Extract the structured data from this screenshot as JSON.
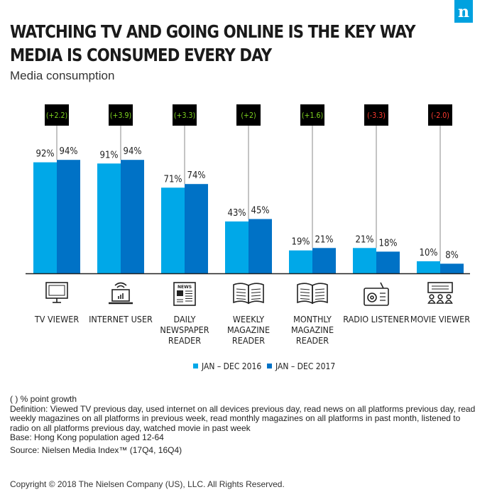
{
  "brand": {
    "logo_letter": "n",
    "color": "#00a1df"
  },
  "title_lines": [
    "WATCHING TV AND GOING ONLINE IS THE KEY WAY",
    "MEDIA IS CONSUMED EVERY DAY"
  ],
  "subtitle": "Media consumption",
  "chart_data": {
    "type": "bar",
    "title": "WATCHING TV AND GOING ONLINE IS THE KEY WAY MEDIA IS CONSUMED EVERY DAY",
    "subtitle": "Media consumption",
    "xlabel": "",
    "ylabel": "",
    "ylim": [
      0,
      100
    ],
    "grid": false,
    "legend_position": "bottom",
    "categories": [
      {
        "label": [
          "TV VIEWER"
        ],
        "icon": "tv-icon"
      },
      {
        "label": [
          "INTERNET USER"
        ],
        "icon": "laptop-wifi-icon"
      },
      {
        "label": [
          "DAILY",
          "NEWSPAPER",
          "READER"
        ],
        "icon": "newspaper-icon"
      },
      {
        "label": [
          "WEEKLY",
          "MAGAZINE",
          "READER"
        ],
        "icon": "open-book-icon"
      },
      {
        "label": [
          "MONTHLY",
          "MAGAZINE",
          "READER"
        ],
        "icon": "open-book-icon"
      },
      {
        "label": [
          "RADIO LISTENER"
        ],
        "icon": "radio-icon"
      },
      {
        "label": [
          "MOVIE VIEWER"
        ],
        "icon": "cinema-icon"
      }
    ],
    "series": [
      {
        "name": "JAN – DEC 2016",
        "color": "#00a8e8",
        "values": [
          92,
          91,
          71,
          43,
          19,
          21,
          10
        ],
        "labels": [
          "92%",
          "91%",
          "71%",
          "43%",
          "19%",
          "21%",
          "10%"
        ]
      },
      {
        "name": "JAN – DEC 2017",
        "color": "#0072c6",
        "values": [
          94,
          94,
          74,
          45,
          21,
          18,
          8
        ],
        "labels": [
          "94%",
          "94%",
          "74%",
          "45%",
          "21%",
          "18%",
          "8%"
        ]
      }
    ],
    "growth": [
      {
        "text": "(+2.2)",
        "value": 2.2,
        "color": "#7ed321"
      },
      {
        "text": "(+3.9)",
        "value": 3.9,
        "color": "#7ed321"
      },
      {
        "text": "(+3.3)",
        "value": 3.3,
        "color": "#7ed321"
      },
      {
        "text": "(+2)",
        "value": 2,
        "color": "#7ed321"
      },
      {
        "text": "(+1.6)",
        "value": 1.6,
        "color": "#7ed321"
      },
      {
        "text": "(-3.3)",
        "value": -3.3,
        "color": "#ff3b30"
      },
      {
        "text": "(-2.0)",
        "value": -2.0,
        "color": "#ff3b30"
      }
    ]
  },
  "footnotes": {
    "legend_note": "( ) % point growth",
    "definition": "Definition: Viewed TV previous day, used internet on all devices previous day, read news on all platforms previous day, read weekly magazines on all platforms in previous week, read monthly magazines on all platforms in past month, listened to radio on all platforms previous day, watched movie in past week",
    "base": "Base: Hong Kong population aged 12-64",
    "source": "Source: Nielsen Media Index™ (17Q4, 16Q4)"
  },
  "copyright": "Copyright © 2018 The Nielsen Company (US), LLC. All Rights Reserved."
}
